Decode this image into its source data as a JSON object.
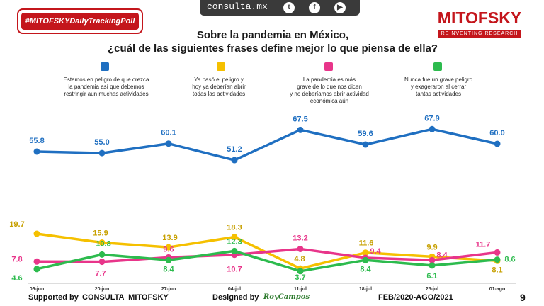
{
  "header": {
    "hashtag": "#MITOFSKYDailyTrackingPoll",
    "site": "consulta.mx",
    "social_icons": [
      "twitter-icon",
      "facebook-icon",
      "youtube-icon"
    ],
    "logo_word": "MITOFSKY",
    "logo_tagline": "REINVENTING RESEARCH",
    "brand_color": "#c4161c"
  },
  "title_lines": [
    "Sobre la pandemia en México,",
    "¿cuál de las siguientes frases define mejor lo que piensa de ella?"
  ],
  "legend": [
    {
      "color": "#1f6fc1",
      "lines": [
        "Estamos en peligro de que crezca",
        "la pandemia así que debemos",
        "restringir aun muchas actividades"
      ]
    },
    {
      "color": "#f5c000",
      "lines": [
        "Ya pasó el peligro y",
        "hoy ya deberían abrir",
        "todas las actividades"
      ]
    },
    {
      "color": "#e8358a",
      "lines": [
        "La pandemia es más",
        "grave de lo que nos dicen",
        "y no deberíamos abrir actividad",
        "económica aún"
      ]
    },
    {
      "color": "#2dbb4e",
      "lines": [
        "Nunca fue un grave peligro",
        "y exageraron al cerrar",
        "tantas actividades"
      ]
    }
  ],
  "chart_data": {
    "type": "line",
    "categories": [
      "06-jun",
      "20-jun",
      "27-jun",
      "04-jul",
      "11-jul",
      "18-jul",
      "25-jul",
      "01-ago"
    ],
    "series": [
      {
        "color": "#1f6fc1",
        "values": [
          55.8,
          55.0,
          60.1,
          51.2,
          67.5,
          59.6,
          67.9,
          60.0
        ]
      },
      {
        "color": "#f5c000",
        "values": [
          19.7,
          15.9,
          13.9,
          18.3,
          4.8,
          11.6,
          9.9,
          8.1
        ]
      },
      {
        "color": "#e8358a",
        "values": [
          7.8,
          7.7,
          9.6,
          10.7,
          13.2,
          9.4,
          8.4,
          11.7
        ]
      },
      {
        "color": "#2dbb4e",
        "values": [
          4.6,
          10.8,
          8.4,
          12.3,
          3.7,
          8.4,
          6.1,
          8.6
        ]
      }
    ]
  },
  "footer": {
    "supported_label": "Supported by",
    "supported_name": "CONSULTA  MITOFSKY",
    "designed_label": "Designed by",
    "designer": "RoyCampos",
    "period": "FEB/2020-AGO/2021",
    "page_number": "9"
  }
}
